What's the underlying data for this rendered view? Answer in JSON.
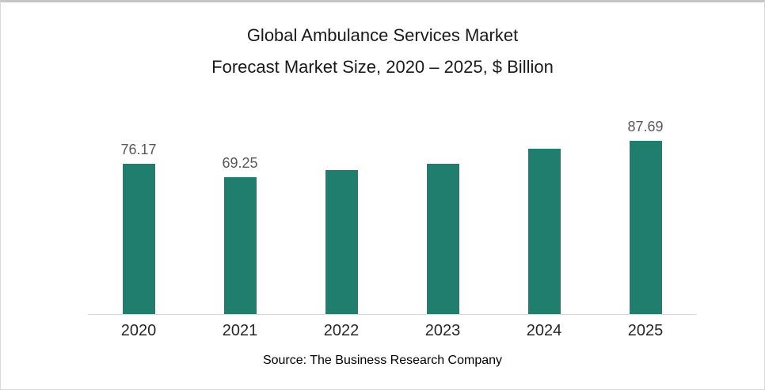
{
  "title": {
    "line1": "Global Ambulance Services Market",
    "line2": "Forecast Market Size, 2020 – 2025, $ Billion"
  },
  "source": "Source: The Business Research Company",
  "colors": {
    "bar": "#207E6E",
    "axis_line": "#D9D9D9",
    "value_label": "#595959",
    "year_label": "#262626"
  },
  "chart_data": {
    "type": "bar",
    "title": "Global Ambulance Services Market Forecast Market Size, 2020 – 2025, $ Billion",
    "categories": [
      "2020",
      "2021",
      "2022",
      "2023",
      "2024",
      "2025"
    ],
    "values": [
      76.17,
      69.25,
      72.6,
      76.0,
      83.6,
      87.69
    ],
    "data_labels": [
      "76.17",
      "69.25",
      "",
      "",
      "",
      "87.69"
    ],
    "xlabel": "",
    "ylabel": "$ Billion",
    "ylim": [
      0,
      100
    ],
    "grid": false,
    "legend": false
  }
}
